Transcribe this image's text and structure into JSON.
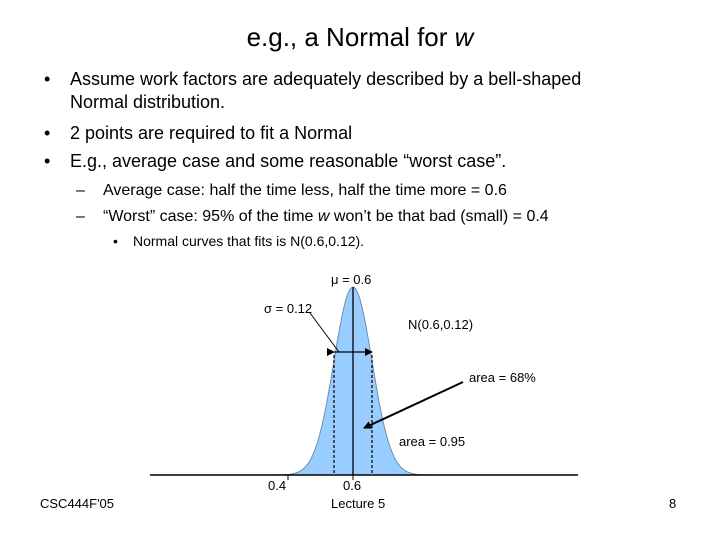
{
  "slide": {
    "title_prefix": "e.g., a Normal for ",
    "title_var": "w",
    "bullets": [
      {
        "line1": "Assume work factors are adequately described by a bell-shaped",
        "line2": "Normal distribution."
      },
      {
        "text": "2 points are required to fit a Normal"
      },
      {
        "text": "E.g., average case and some reasonable “worst case”."
      }
    ],
    "sub_bullets": [
      {
        "text": "Average case: half the time less, half the time more = 0.6"
      },
      {
        "before": "“Worst” case: 95% of the time ",
        "var": "w",
        "after": " won’t be that bad (small) = 0.4"
      }
    ],
    "subsub_bullet": "Normal curves that fits is N(0.6,0.12).",
    "bullet_mark": "•",
    "dash_mark": "–"
  },
  "figure": {
    "mu_label": "μ = 0.6",
    "sigma_label": "σ = 0.12",
    "dist_label": "N(0.6,0.12)",
    "area68_label": "area = 68%",
    "area95_label": "area = 0.95",
    "tick_04": "0.4",
    "tick_06": "0.6",
    "fill_color": "#99ccff"
  },
  "footer": {
    "course": "CSC444F'05",
    "lecture": "Lecture 5",
    "page": "8"
  }
}
